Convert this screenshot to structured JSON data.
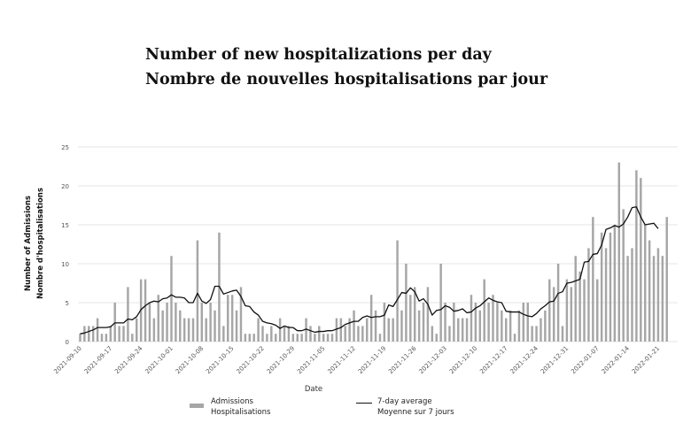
{
  "titles": {
    "line1": "Number of new hospitalizations per day",
    "line2": "Nombre de nouvelles hospitalisations par jour"
  },
  "legend": {
    "bars_line1": "Admissions",
    "bars_line2": "Hospitalisations",
    "line_line1": "7-day average",
    "line_line2": "Moyenne sur 7 jours"
  },
  "colors": {
    "bars": "#a6a6a6",
    "line": "#111111",
    "grid": "#e6e6e6",
    "text": "#222222"
  },
  "chart_data": {
    "type": "bar",
    "xlabel": "Date",
    "ylabel_line1": "Number of Admissions",
    "ylabel_line2": "Nombre d'hospitalisations",
    "ylim": [
      0,
      25
    ],
    "yticks": [
      0,
      5,
      10,
      15,
      20,
      25
    ],
    "grid": "horizontal",
    "legend_position": "bottom",
    "x_start": "2021-09-10",
    "x_end": "2022-01-25",
    "xticks": [
      "2021-09-10",
      "2021-09-17",
      "2021-09-24",
      "2021-10-01",
      "2021-10-08",
      "2021-10-15",
      "2021-10-22",
      "2021-10-29",
      "2021-11-05",
      "2021-11-12",
      "2021-11-19",
      "2021-11-26",
      "2021-12-03",
      "2021-12-10",
      "2021-12-17",
      "2021-12-24",
      "2021-12-31",
      "2022-01-07",
      "2022-01-14",
      "2022-01-21"
    ],
    "series": [
      {
        "name": "Admissions",
        "style": "bar",
        "values": [
          1,
          2,
          2,
          2,
          3,
          1,
          1,
          2,
          5,
          2,
          2,
          7,
          1,
          3,
          8,
          8,
          5,
          3,
          6,
          4,
          5,
          11,
          5,
          4,
          3,
          3,
          3,
          13,
          5,
          3,
          5,
          4,
          14,
          2,
          6,
          6,
          4,
          7,
          1,
          1,
          1,
          3,
          2,
          1,
          2,
          1,
          3,
          2,
          2,
          1,
          1,
          1,
          3,
          2,
          1,
          2,
          1,
          1,
          1,
          3,
          3,
          2,
          3,
          4,
          2,
          2,
          3,
          6,
          4,
          1,
          5,
          3,
          3,
          13,
          4,
          10,
          6,
          7,
          4,
          5,
          7,
          2,
          1,
          10,
          5,
          2,
          5,
          3,
          3,
          3,
          6,
          5,
          4,
          8,
          5,
          6,
          5,
          4,
          3,
          4,
          1,
          4,
          5,
          5,
          2,
          2,
          3,
          4,
          8,
          7,
          10,
          2,
          8,
          7,
          11,
          9,
          8,
          12,
          16,
          8,
          14,
          12,
          14,
          15,
          23,
          17,
          11,
          12,
          22,
          21,
          15,
          13,
          11,
          12,
          11,
          16
        ]
      },
      {
        "name": "7-day average",
        "style": "line",
        "values": [
          1.0,
          1.1,
          1.3,
          1.5,
          1.8,
          1.8,
          1.8,
          1.9,
          2.4,
          2.4,
          2.4,
          2.9,
          2.8,
          3.2,
          4.1,
          4.6,
          5.0,
          5.2,
          5.1,
          5.5,
          5.6,
          6.0,
          5.7,
          5.7,
          5.6,
          5.0,
          5.0,
          6.2,
          5.2,
          4.9,
          5.4,
          7.1,
          7.1,
          6.1,
          6.3,
          6.5,
          6.6,
          5.8,
          4.6,
          4.5,
          3.8,
          3.4,
          2.6,
          2.4,
          2.3,
          2.1,
          1.7,
          2.0,
          1.8,
          1.8,
          1.4,
          1.4,
          1.6,
          1.4,
          1.2,
          1.3,
          1.3,
          1.4,
          1.4,
          1.6,
          1.8,
          2.2,
          2.4,
          2.6,
          2.6,
          3.1,
          3.3,
          3.1,
          3.2,
          3.2,
          3.4,
          4.7,
          4.5,
          5.4,
          6.3,
          6.2,
          6.9,
          6.4,
          5.2,
          5.5,
          4.8,
          3.4,
          4.0,
          4.1,
          4.6,
          4.4,
          3.9,
          4.0,
          4.2,
          3.7,
          3.8,
          4.3,
          4.6,
          5.1,
          5.6,
          5.3,
          5.1,
          5.0,
          3.9,
          3.8,
          3.8,
          3.8,
          3.5,
          3.3,
          3.2,
          3.6,
          4.2,
          4.6,
          5.1,
          5.2,
          6.2,
          6.4,
          7.5,
          7.6,
          7.8,
          8.0,
          10.2,
          10.3,
          11.2,
          11.3,
          12.4,
          14.4,
          14.6,
          14.9,
          14.7,
          15.1,
          16.0,
          17.2,
          17.3,
          16.0,
          15.0,
          15.1,
          15.2,
          14.5
        ]
      }
    ]
  }
}
